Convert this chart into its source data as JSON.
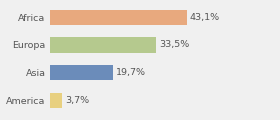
{
  "categories": [
    "Africa",
    "Europa",
    "Asia",
    "America"
  ],
  "values": [
    43.1,
    33.5,
    19.7,
    3.7
  ],
  "labels": [
    "43,1%",
    "33,5%",
    "19,7%",
    "3,7%"
  ],
  "bar_colors": [
    "#e8a97e",
    "#b5c98e",
    "#6b8cba",
    "#e8d080"
  ],
  "background_color": "#f0f0f0",
  "xlim": [
    0,
    62
  ],
  "label_fontsize": 6.8,
  "tick_fontsize": 6.8,
  "bar_height": 0.55
}
